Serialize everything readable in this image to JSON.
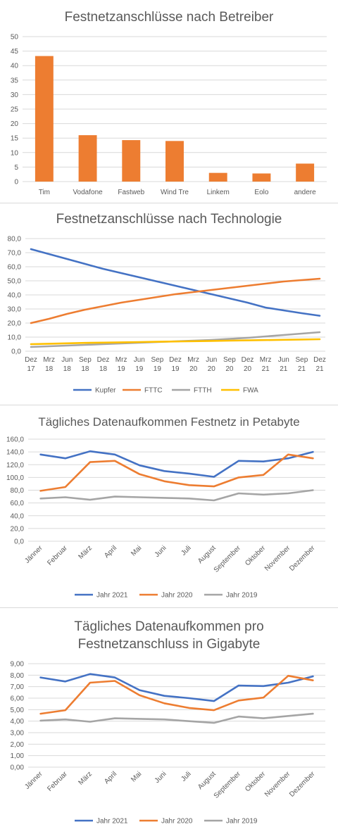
{
  "charts": [
    {
      "type": "bar",
      "title": "Festnetzanschlüsse nach Betreiber",
      "categories": [
        "Tim",
        "Vodafone",
        "Fastweb",
        "Wind Tre",
        "Linkem",
        "Eolo",
        "andere"
      ],
      "values": [
        43.3,
        16.0,
        14.3,
        14.0,
        3.0,
        2.8,
        6.2
      ],
      "ylim": [
        0,
        50
      ],
      "yticks": [
        "0",
        "5",
        "10",
        "15",
        "20",
        "25",
        "30",
        "35",
        "40",
        "45",
        "50"
      ],
      "grid": true,
      "colors": {
        "bar": "#ED7D31"
      }
    },
    {
      "type": "line",
      "title": "Festnetzanschlüsse nach Technologie",
      "categories": [
        "Dez 17",
        "Mrz 18",
        "Jun 18",
        "Sep 18",
        "Dez 18",
        "Mrz 19",
        "Jun 19",
        "Sep 19",
        "Dez 19",
        "Mrz 20",
        "Jun 20",
        "Sep 20",
        "Dez 20",
        "Mrz 21",
        "Jun 21",
        "Sep 21",
        "Dez 21"
      ],
      "ylim": [
        0,
        80
      ],
      "yticks": [
        "0,0",
        "10,0",
        "20,0",
        "30,0",
        "40,0",
        "50,0",
        "60,0",
        "70,0",
        "80,0"
      ],
      "grid": true,
      "legend": "bottom",
      "series": [
        {
          "name": "Kupfer",
          "color": "#4472C4",
          "values": [
            72.5,
            69.0,
            65.5,
            62.0,
            58.5,
            55.5,
            52.5,
            49.5,
            46.5,
            43.5,
            40.5,
            37.5,
            34.5,
            31.0,
            29.0,
            27.0,
            25.2
          ]
        },
        {
          "name": "FTTC",
          "color": "#ED7D31",
          "values": [
            20.0,
            23.0,
            26.5,
            29.5,
            32.0,
            34.5,
            36.5,
            38.5,
            40.5,
            42.0,
            43.5,
            45.0,
            46.5,
            48.0,
            49.5,
            50.5,
            51.5
          ]
        },
        {
          "name": "FTTH",
          "color": "#A5A5A5",
          "values": [
            3.0,
            3.5,
            4.0,
            4.5,
            5.0,
            5.5,
            6.0,
            6.5,
            7.0,
            7.5,
            8.0,
            8.7,
            9.5,
            10.5,
            11.5,
            12.5,
            13.5
          ]
        },
        {
          "name": "FWA",
          "color": "#FFC000",
          "values": [
            5.0,
            5.3,
            5.6,
            5.9,
            6.1,
            6.3,
            6.5,
            6.7,
            6.9,
            7.1,
            7.3,
            7.5,
            7.7,
            7.9,
            8.1,
            8.3,
            8.5
          ]
        }
      ]
    },
    {
      "type": "line",
      "title": "Tägliches Datenaufkommen Festnetz in Petabyte",
      "categories": [
        "Jänner",
        "Februar",
        "März",
        "April",
        "Mai",
        "Juni",
        "Juli",
        "August",
        "September",
        "Oktober",
        "November",
        "Dezember"
      ],
      "ylim": [
        0,
        160
      ],
      "yticks": [
        "0,0",
        "20,0",
        "40,0",
        "60,0",
        "80,0",
        "100,0",
        "120,0",
        "140,0",
        "160,0"
      ],
      "grid": true,
      "legend": "bottom",
      "series": [
        {
          "name": "Jahr 2021",
          "color": "#4472C4",
          "values": [
            136,
            130,
            141,
            136,
            119,
            110,
            106,
            101,
            126,
            125,
            130,
            140
          ]
        },
        {
          "name": "Jahr 2020",
          "color": "#ED7D31",
          "values": [
            79,
            85,
            124,
            126,
            105,
            94,
            88,
            86,
            100,
            104,
            136,
            130
          ]
        },
        {
          "name": "Jahr 2019",
          "color": "#A5A5A5",
          "values": [
            67,
            69,
            65,
            70,
            69,
            68,
            67,
            64,
            75,
            73,
            75,
            80
          ]
        }
      ]
    },
    {
      "type": "line",
      "title": "Tägliches Datenaufkommen pro Festnetzanschluss in Gigabyte",
      "title_lines": [
        "Tägliches Datenaufkommen pro",
        "Festnetzanschluss in Gigabyte"
      ],
      "categories": [
        "Jänner",
        "Februar",
        "März",
        "April",
        "Mai",
        "Juni",
        "Juli",
        "August",
        "September",
        "Oktober",
        "November",
        "Dezember"
      ],
      "ylim": [
        0,
        9
      ],
      "yticks": [
        "0,00",
        "1,00",
        "2,00",
        "3,00",
        "4,00",
        "5,00",
        "6,00",
        "7,00",
        "8,00",
        "9,00"
      ],
      "grid": true,
      "legend": "bottom",
      "series": [
        {
          "name": "Jahr 2021",
          "color": "#4472C4",
          "values": [
            7.8,
            7.45,
            8.1,
            7.8,
            6.7,
            6.2,
            6.0,
            5.75,
            7.1,
            7.05,
            7.35,
            7.9
          ]
        },
        {
          "name": "Jahr 2020",
          "color": "#ED7D31",
          "values": [
            4.65,
            4.95,
            7.35,
            7.5,
            6.25,
            5.55,
            5.15,
            4.95,
            5.8,
            6.05,
            7.95,
            7.55
          ]
        },
        {
          "name": "Jahr 2019",
          "color": "#A5A5A5",
          "values": [
            4.05,
            4.15,
            3.95,
            4.25,
            4.2,
            4.15,
            4.0,
            3.85,
            4.4,
            4.25,
            4.45,
            4.65
          ]
        }
      ]
    }
  ],
  "chart_data": [
    {
      "type": "bar",
      "title": "Festnetzanschlüsse nach Betreiber",
      "categories": [
        "Tim",
        "Vodafone",
        "Fastweb",
        "Wind Tre",
        "Linkem",
        "Eolo",
        "andere"
      ],
      "values": [
        43.3,
        16.0,
        14.3,
        14.0,
        3.0,
        2.8,
        6.2
      ],
      "ylim": [
        0,
        50
      ]
    },
    {
      "type": "line",
      "title": "Festnetzanschlüsse nach Technologie",
      "categories": [
        "Dez 17",
        "Mrz 18",
        "Jun 18",
        "Sep 18",
        "Dez 18",
        "Mrz 19",
        "Jun 19",
        "Sep 19",
        "Dez 19",
        "Mrz 20",
        "Jun 20",
        "Sep 20",
        "Dez 20",
        "Mrz 21",
        "Jun 21",
        "Sep 21",
        "Dez 21"
      ],
      "ylim": [
        0,
        80
      ],
      "series": [
        {
          "name": "Kupfer",
          "values": [
            72.5,
            69.0,
            65.5,
            62.0,
            58.5,
            55.5,
            52.5,
            49.5,
            46.5,
            43.5,
            40.5,
            37.5,
            34.5,
            31.0,
            29.0,
            27.0,
            25.2
          ]
        },
        {
          "name": "FTTC",
          "values": [
            20.0,
            23.0,
            26.5,
            29.5,
            32.0,
            34.5,
            36.5,
            38.5,
            40.5,
            42.0,
            43.5,
            45.0,
            46.5,
            48.0,
            49.5,
            50.5,
            51.5
          ]
        },
        {
          "name": "FTTH",
          "values": [
            3.0,
            3.5,
            4.0,
            4.5,
            5.0,
            5.5,
            6.0,
            6.5,
            7.0,
            7.5,
            8.0,
            8.7,
            9.5,
            10.5,
            11.5,
            12.5,
            13.5
          ]
        },
        {
          "name": "FWA",
          "values": [
            5.0,
            5.3,
            5.6,
            5.9,
            6.1,
            6.3,
            6.5,
            6.7,
            6.9,
            7.1,
            7.3,
            7.5,
            7.7,
            7.9,
            8.1,
            8.3,
            8.5
          ]
        }
      ]
    },
    {
      "type": "line",
      "title": "Tägliches Datenaufkommen Festnetz in Petabyte",
      "categories": [
        "Jänner",
        "Februar",
        "März",
        "April",
        "Mai",
        "Juni",
        "Juli",
        "August",
        "September",
        "Oktober",
        "November",
        "Dezember"
      ],
      "ylim": [
        0,
        160
      ],
      "series": [
        {
          "name": "Jahr 2021",
          "values": [
            136,
            130,
            141,
            136,
            119,
            110,
            106,
            101,
            126,
            125,
            130,
            140
          ]
        },
        {
          "name": "Jahr 2020",
          "values": [
            79,
            85,
            124,
            126,
            105,
            94,
            88,
            86,
            100,
            104,
            136,
            130
          ]
        },
        {
          "name": "Jahr 2019",
          "values": [
            67,
            69,
            65,
            70,
            69,
            68,
            67,
            64,
            75,
            73,
            75,
            80
          ]
        }
      ]
    },
    {
      "type": "line",
      "title": "Tägliches Datenaufkommen pro Festnetzanschluss in Gigabyte",
      "categories": [
        "Jänner",
        "Februar",
        "März",
        "April",
        "Mai",
        "Juni",
        "Juli",
        "August",
        "September",
        "Oktober",
        "November",
        "Dezember"
      ],
      "ylim": [
        0,
        9
      ],
      "series": [
        {
          "name": "Jahr 2021",
          "values": [
            7.8,
            7.45,
            8.1,
            7.8,
            6.7,
            6.2,
            6.0,
            5.75,
            7.1,
            7.05,
            7.35,
            7.9
          ]
        },
        {
          "name": "Jahr 2020",
          "values": [
            4.65,
            4.95,
            7.35,
            7.5,
            6.25,
            5.55,
            5.15,
            4.95,
            5.8,
            6.05,
            7.95,
            7.55
          ]
        },
        {
          "name": "Jahr 2019",
          "values": [
            4.05,
            4.15,
            3.95,
            4.25,
            4.2,
            4.15,
            4.0,
            3.85,
            4.4,
            4.25,
            4.45,
            4.65
          ]
        }
      ]
    }
  ]
}
